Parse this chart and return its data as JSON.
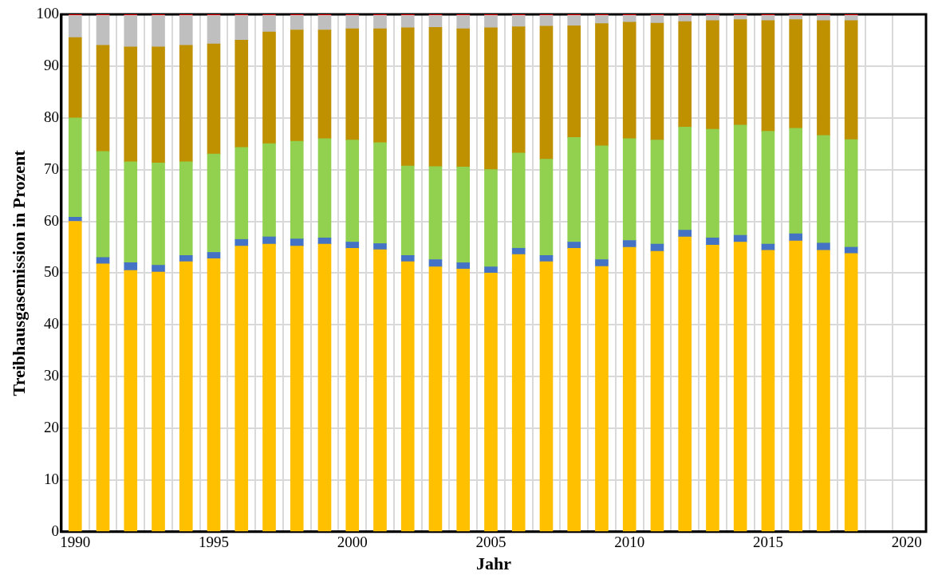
{
  "chart_data": {
    "type": "bar",
    "stacked": true,
    "xlabel": "Jahr",
    "ylabel": "Treibhausgasemission in Prozent",
    "x": [
      1990,
      1991,
      1992,
      1993,
      1994,
      1995,
      1996,
      1997,
      1998,
      1999,
      2000,
      2001,
      2002,
      2003,
      2004,
      2005,
      2006,
      2007,
      2008,
      2009,
      2010,
      2011,
      2012,
      2013,
      2014,
      2015,
      2016,
      2017,
      2018
    ],
    "series": [
      {
        "color": "#ffc000",
        "values": [
          60,
          51.8,
          50.5,
          50.2,
          52.2,
          52.8,
          55.2,
          55.6,
          55.2,
          55.6,
          54.8,
          54.5,
          52.2,
          51.2,
          50.8,
          50,
          53.6,
          52.2,
          54.8,
          51.3,
          55,
          54.2,
          57,
          55.4,
          56,
          54.4,
          56.2,
          54.4,
          53.8
        ]
      },
      {
        "color": "#4472c4",
        "values": [
          0.8,
          1.2,
          1.5,
          1.3,
          1.2,
          1.2,
          1.3,
          1.4,
          1.4,
          1.2,
          1.2,
          1.2,
          1.2,
          1.4,
          1.2,
          1.2,
          1.2,
          1.2,
          1.2,
          1.3,
          1.3,
          1.4,
          1.3,
          1.4,
          1.3,
          1.2,
          1.4,
          1.4,
          1.2
        ]
      },
      {
        "color": "#92d050",
        "values": [
          19.2,
          20.5,
          19.5,
          19.8,
          18.1,
          19,
          17.8,
          18,
          18.9,
          19.2,
          19.7,
          19.5,
          17.3,
          18,
          18.5,
          18.8,
          18.4,
          18.6,
          20.2,
          22,
          19.7,
          20.1,
          19.9,
          21,
          21.3,
          21.8,
          20.4,
          20.8,
          20.8
        ]
      },
      {
        "color": "#bf9000",
        "values": [
          15.5,
          20.5,
          22.2,
          22.4,
          22.5,
          21.3,
          20.7,
          21.6,
          21.5,
          21,
          21.5,
          22,
          26.7,
          26.9,
          26.7,
          27.4,
          24.4,
          25.7,
          21.6,
          23.6,
          22.5,
          22.6,
          20.4,
          21,
          20.4,
          21.4,
          21,
          22.2,
          23
        ]
      },
      {
        "color": "#bfbfbf",
        "values": [
          4.3,
          5.8,
          6.1,
          6.1,
          5.8,
          5.5,
          4.8,
          3.2,
          2.8,
          2.8,
          2.6,
          2.6,
          2.4,
          2.3,
          2.6,
          2.4,
          2.2,
          2.1,
          2,
          1.6,
          1.3,
          1.5,
          1.2,
          1,
          0.8,
          1,
          0.8,
          1,
          1
        ]
      },
      {
        "color": "#ff0000",
        "values": [
          0.2,
          0.2,
          0.2,
          0.2,
          0.2,
          0.2,
          0.2,
          0.2,
          0.2,
          0.2,
          0.2,
          0.2,
          0.2,
          0.2,
          0.2,
          0.2,
          0.2,
          0.2,
          0.2,
          0.2,
          0.2,
          0.2,
          0.2,
          0.2,
          0.2,
          0.2,
          0.2,
          0.2,
          0.2
        ]
      }
    ],
    "xlim": [
      1989.5,
      2020.7
    ],
    "xticks": [
      1990,
      {
        "value": 1990.5,
        "label": null
      },
      {
        "value": 1991.5,
        "label": null
      },
      {
        "value": 1992.5,
        "label": null
      },
      {
        "value": 1993.5,
        "label": null
      },
      {
        "value": 1994.5,
        "label": null
      },
      1995,
      {
        "value": 1995.5,
        "label": null
      },
      {
        "value": 1996.5,
        "label": null
      },
      {
        "value": 1997.5,
        "label": null
      },
      {
        "value": 1998.5,
        "label": null
      },
      {
        "value": 1999.5,
        "label": null
      },
      2000,
      {
        "value": 2000.5,
        "label": null
      },
      {
        "value": 2001.5,
        "label": null
      },
      {
        "value": 2002.5,
        "label": null
      },
      {
        "value": 2003.5,
        "label": null
      },
      {
        "value": 2004.5,
        "label": null
      },
      2005,
      {
        "value": 2005.5,
        "label": null
      },
      {
        "value": 2006.5,
        "label": null
      },
      {
        "value": 2007.5,
        "label": null
      },
      {
        "value": 2008.5,
        "label": null
      },
      {
        "value": 2009.5,
        "label": null
      },
      2010,
      {
        "value": 2010.5,
        "label": null
      },
      {
        "value": 2011.5,
        "label": null
      },
      {
        "value": 2012.5,
        "label": null
      },
      {
        "value": 2013.5,
        "label": null
      },
      {
        "value": 2014.5,
        "label": null
      },
      2015,
      {
        "value": 2015.5,
        "label": null
      },
      {
        "value": 2016.5,
        "label": null
      },
      {
        "value": 2017.5,
        "label": null
      },
      {
        "value": 2018.5,
        "label": null
      },
      {
        "value": 2019.5,
        "label": null
      },
      2020
    ],
    "ylim": [
      0,
      100
    ],
    "yticks": [
      0,
      10,
      20,
      30,
      40,
      50,
      60,
      70,
      80,
      90,
      100
    ],
    "grid": true
  }
}
